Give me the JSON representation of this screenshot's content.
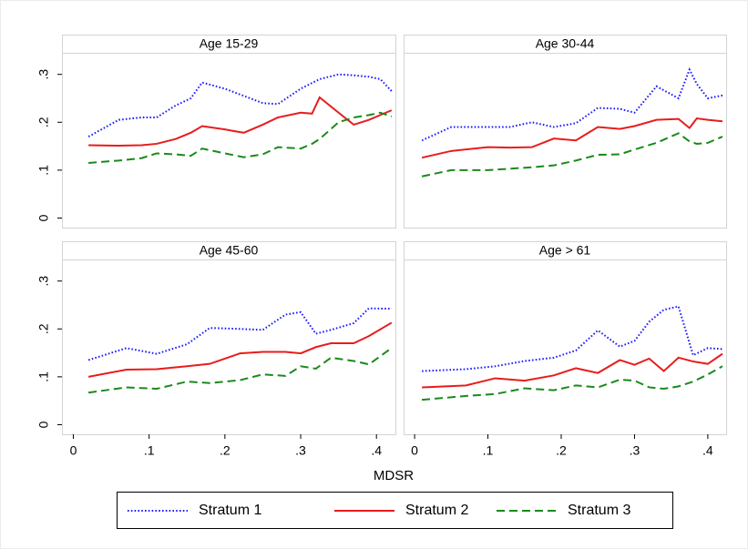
{
  "x_label": "MDSR",
  "xlim": [
    -0.015,
    0.425
  ],
  "ylim": [
    -0.02,
    0.345
  ],
  "xticks": [
    0,
    {
      "value": 0.1,
      "label": ".1"
    },
    {
      "value": 0.2,
      "label": ".2"
    },
    {
      "value": 0.3,
      "label": ".3"
    },
    {
      "value": 0.4,
      "label": ".4"
    }
  ],
  "yticks": [
    0,
    {
      "value": 0.1,
      "label": ".1"
    },
    {
      "value": 0.2,
      "label": ".2"
    },
    {
      "value": 0.3,
      "label": ".3"
    }
  ],
  "series_styles": [
    {
      "name": "Stratum 1",
      "color": "#1c1cff",
      "style": "dotted"
    },
    {
      "name": "Stratum 2",
      "color": "#e81c1c",
      "style": "solid"
    },
    {
      "name": "Stratum 3",
      "color": "#1a8a1a",
      "style": "dashed"
    }
  ],
  "chart_data": [
    {
      "type": "line",
      "title": "Age 15-29",
      "x": [
        0.02,
        0.06,
        0.09,
        0.11,
        0.135,
        0.155,
        0.17,
        0.2,
        0.225,
        0.25,
        0.27,
        0.3,
        0.315,
        0.325,
        0.35,
        0.37,
        0.39,
        0.405,
        0.42
      ],
      "series": [
        {
          "values": [
            0.17,
            0.205,
            0.21,
            0.21,
            0.235,
            0.25,
            0.283,
            0.27,
            0.255,
            0.24,
            0.238,
            0.27,
            0.282,
            0.29,
            0.3,
            0.298,
            0.295,
            0.29,
            0.265
          ]
        },
        {
          "values": [
            0.152,
            0.151,
            0.152,
            0.155,
            0.165,
            0.178,
            0.192,
            0.185,
            0.178,
            0.195,
            0.21,
            0.22,
            0.218,
            0.252,
            0.22,
            0.195,
            0.205,
            0.215,
            0.225
          ]
        },
        {
          "values": [
            0.115,
            0.12,
            0.125,
            0.135,
            0.133,
            0.13,
            0.145,
            0.135,
            0.127,
            0.133,
            0.148,
            0.145,
            0.155,
            0.165,
            0.2,
            0.21,
            0.215,
            0.22,
            0.212
          ]
        }
      ]
    },
    {
      "type": "line",
      "title": "Age 30-44",
      "x": [
        0.01,
        0.05,
        0.1,
        0.13,
        0.16,
        0.19,
        0.22,
        0.25,
        0.28,
        0.3,
        0.33,
        0.36,
        0.375,
        0.385,
        0.4,
        0.42
      ],
      "series": [
        {
          "values": [
            0.162,
            0.19,
            0.19,
            0.19,
            0.2,
            0.19,
            0.198,
            0.23,
            0.228,
            0.22,
            0.275,
            0.25,
            0.31,
            0.28,
            0.25,
            0.256
          ]
        },
        {
          "values": [
            0.126,
            0.14,
            0.148,
            0.147,
            0.148,
            0.166,
            0.162,
            0.19,
            0.186,
            0.192,
            0.205,
            0.207,
            0.188,
            0.208,
            0.205,
            0.202
          ]
        },
        {
          "values": [
            0.087,
            0.1,
            0.1,
            0.103,
            0.106,
            0.11,
            0.12,
            0.132,
            0.133,
            0.143,
            0.157,
            0.177,
            0.16,
            0.155,
            0.157,
            0.17
          ]
        }
      ]
    },
    {
      "type": "line",
      "title": "Age 45-60",
      "x": [
        0.02,
        0.07,
        0.11,
        0.15,
        0.18,
        0.22,
        0.25,
        0.28,
        0.3,
        0.32,
        0.34,
        0.37,
        0.39,
        0.42
      ],
      "series": [
        {
          "values": [
            0.135,
            0.16,
            0.148,
            0.168,
            0.202,
            0.2,
            0.198,
            0.23,
            0.235,
            0.19,
            0.198,
            0.212,
            0.243,
            0.242
          ]
        },
        {
          "values": [
            0.1,
            0.115,
            0.116,
            0.122,
            0.127,
            0.149,
            0.152,
            0.152,
            0.149,
            0.162,
            0.17,
            0.17,
            0.185,
            0.213
          ]
        },
        {
          "values": [
            0.067,
            0.078,
            0.075,
            0.09,
            0.087,
            0.093,
            0.105,
            0.102,
            0.122,
            0.117,
            0.14,
            0.133,
            0.126,
            0.16
          ]
        }
      ]
    },
    {
      "type": "line",
      "title": "Age > 61",
      "x": [
        0.01,
        0.07,
        0.11,
        0.15,
        0.19,
        0.22,
        0.25,
        0.28,
        0.3,
        0.32,
        0.34,
        0.36,
        0.38,
        0.4,
        0.42
      ],
      "series": [
        {
          "values": [
            0.112,
            0.116,
            0.122,
            0.133,
            0.14,
            0.155,
            0.197,
            0.163,
            0.175,
            0.215,
            0.24,
            0.247,
            0.145,
            0.16,
            0.158
          ]
        },
        {
          "values": [
            0.078,
            0.082,
            0.097,
            0.092,
            0.103,
            0.118,
            0.108,
            0.135,
            0.125,
            0.138,
            0.112,
            0.14,
            0.132,
            0.127,
            0.148
          ]
        },
        {
          "values": [
            0.052,
            0.06,
            0.064,
            0.076,
            0.072,
            0.082,
            0.078,
            0.094,
            0.092,
            0.078,
            0.075,
            0.08,
            0.09,
            0.105,
            0.122
          ]
        }
      ]
    }
  ]
}
